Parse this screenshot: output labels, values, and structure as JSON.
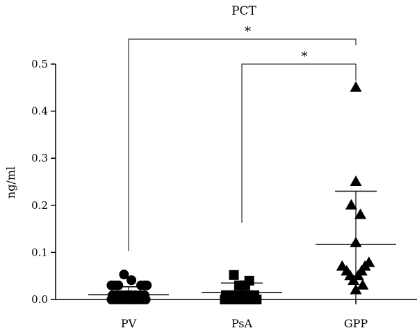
{
  "chart_data": {
    "type": "scatter",
    "title": "PCT",
    "xlabel": "",
    "ylabel": "ng/ml",
    "ylim": [
      0,
      0.5
    ],
    "yticks": [
      "0.0",
      "0.1",
      "0.2",
      "0.3",
      "0.4",
      "0.5"
    ],
    "categories": [
      "PV",
      "PsA",
      "GPP"
    ],
    "grid": false,
    "groups": [
      {
        "category": "PV",
        "marker": "circle",
        "mean": 0.01,
        "sd_upper": 0.027,
        "sd_lower": 0.0,
        "points": [
          {
            "offset": -0.3,
            "y": 0.0
          },
          {
            "offset": -0.24,
            "y": 0.0
          },
          {
            "offset": -0.18,
            "y": 0.0
          },
          {
            "offset": -0.12,
            "y": 0.0
          },
          {
            "offset": -0.06,
            "y": 0.0
          },
          {
            "offset": 0.0,
            "y": 0.0
          },
          {
            "offset": 0.06,
            "y": 0.0
          },
          {
            "offset": 0.12,
            "y": 0.0
          },
          {
            "offset": 0.18,
            "y": 0.0
          },
          {
            "offset": 0.24,
            "y": 0.0
          },
          {
            "offset": 0.3,
            "y": 0.0
          },
          {
            "offset": -0.28,
            "y": 0.009
          },
          {
            "offset": -0.2,
            "y": 0.009
          },
          {
            "offset": -0.12,
            "y": 0.009
          },
          {
            "offset": -0.04,
            "y": 0.009
          },
          {
            "offset": 0.04,
            "y": 0.009
          },
          {
            "offset": 0.12,
            "y": 0.009
          },
          {
            "offset": 0.2,
            "y": 0.009
          },
          {
            "offset": 0.28,
            "y": 0.009
          },
          {
            "offset": -0.3,
            "y": 0.03
          },
          {
            "offset": -0.24,
            "y": 0.03
          },
          {
            "offset": -0.18,
            "y": 0.03
          },
          {
            "offset": 0.22,
            "y": 0.03
          },
          {
            "offset": 0.28,
            "y": 0.03
          },
          {
            "offset": 0.32,
            "y": 0.03
          },
          {
            "offset": -0.08,
            "y": 0.053
          },
          {
            "offset": 0.05,
            "y": 0.041
          }
        ]
      },
      {
        "category": "PsA",
        "marker": "square",
        "mean": 0.015,
        "sd_upper": 0.035,
        "sd_lower": 0.0,
        "points": [
          {
            "offset": -0.3,
            "y": 0.0
          },
          {
            "offset": -0.22,
            "y": 0.0
          },
          {
            "offset": -0.14,
            "y": 0.0
          },
          {
            "offset": -0.06,
            "y": 0.0
          },
          {
            "offset": 0.02,
            "y": 0.0
          },
          {
            "offset": 0.1,
            "y": 0.0
          },
          {
            "offset": 0.18,
            "y": 0.0
          },
          {
            "offset": 0.26,
            "y": 0.0
          },
          {
            "offset": -0.28,
            "y": 0.009
          },
          {
            "offset": -0.18,
            "y": 0.009
          },
          {
            "offset": -0.08,
            "y": 0.009
          },
          {
            "offset": 0.02,
            "y": 0.009
          },
          {
            "offset": 0.12,
            "y": 0.009
          },
          {
            "offset": 0.22,
            "y": 0.009
          },
          {
            "offset": -0.14,
            "y": 0.052
          },
          {
            "offset": -0.05,
            "y": 0.03
          },
          {
            "offset": 0.06,
            "y": 0.03
          },
          {
            "offset": 0.13,
            "y": 0.04
          }
        ]
      },
      {
        "category": "GPP",
        "marker": "triangle",
        "mean": 0.117,
        "sd_upper": 0.23,
        "sd_lower": 0.0,
        "points": [
          {
            "offset": 0.0,
            "y": 0.45
          },
          {
            "offset": 0.0,
            "y": 0.25
          },
          {
            "offset": -0.08,
            "y": 0.2
          },
          {
            "offset": 0.08,
            "y": 0.18
          },
          {
            "offset": 0.0,
            "y": 0.12
          },
          {
            "offset": -0.24,
            "y": 0.07
          },
          {
            "offset": -0.16,
            "y": 0.06
          },
          {
            "offset": -0.1,
            "y": 0.05
          },
          {
            "offset": -0.04,
            "y": 0.04
          },
          {
            "offset": 0.04,
            "y": 0.05
          },
          {
            "offset": 0.1,
            "y": 0.06
          },
          {
            "offset": 0.16,
            "y": 0.07
          },
          {
            "offset": 0.23,
            "y": 0.078
          },
          {
            "offset": 0.0,
            "y": 0.02
          },
          {
            "offset": 0.12,
            "y": 0.03
          }
        ]
      }
    ],
    "annotations": [
      {
        "from": "PV",
        "to": "GPP",
        "label": "*",
        "bracket_top": 0.553,
        "from_base": 0.103,
        "to_base": 0.54
      },
      {
        "from": "PsA",
        "to": "GPP",
        "label": "*",
        "bracket_top": 0.5,
        "from_base": 0.163,
        "to_base": 0.465
      }
    ]
  }
}
